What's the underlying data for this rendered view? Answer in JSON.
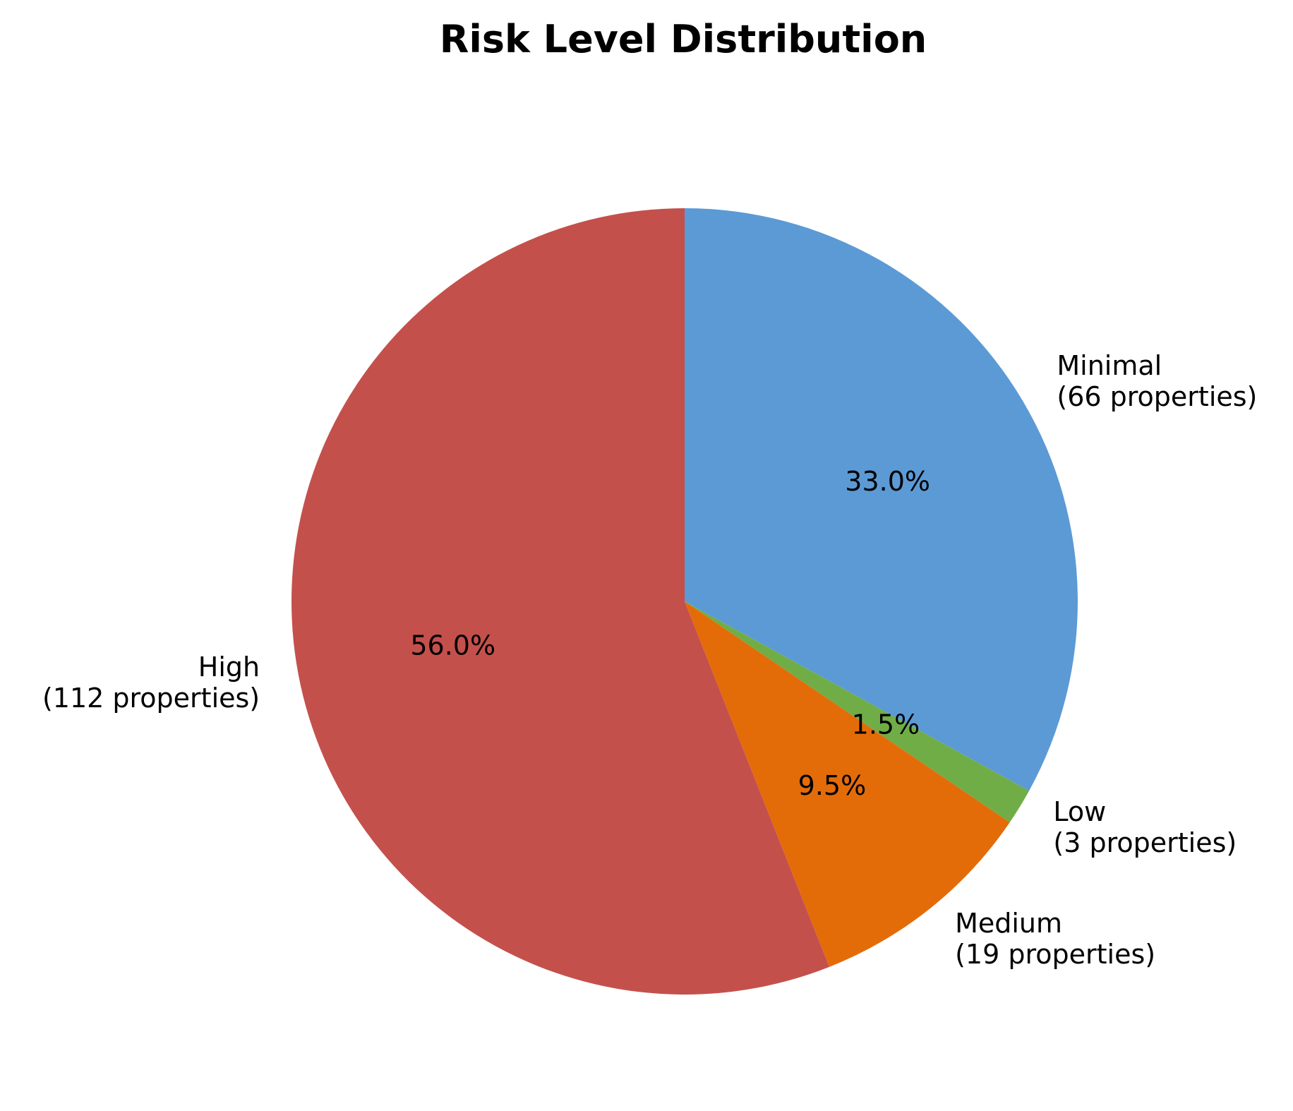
{
  "chart_data": {
    "type": "pie",
    "title": "Risk Level Distribution",
    "start_angle_deg": 90,
    "direction": "clockwise",
    "slices": [
      {
        "category": "Minimal",
        "count_label": "(66 properties)",
        "value": 66,
        "percent_label": "33.0%",
        "color": "#5b9ad5"
      },
      {
        "category": "Low",
        "count_label": "(3 properties)",
        "value": 3,
        "percent_label": "1.5%",
        "color": "#70ad47"
      },
      {
        "category": "Medium",
        "count_label": "(19 properties)",
        "value": 19,
        "percent_label": "9.5%",
        "color": "#e36c09"
      },
      {
        "category": "High",
        "count_label": "(112 properties)",
        "value": 112,
        "percent_label": "56.0%",
        "color": "#c4504c"
      }
    ]
  }
}
